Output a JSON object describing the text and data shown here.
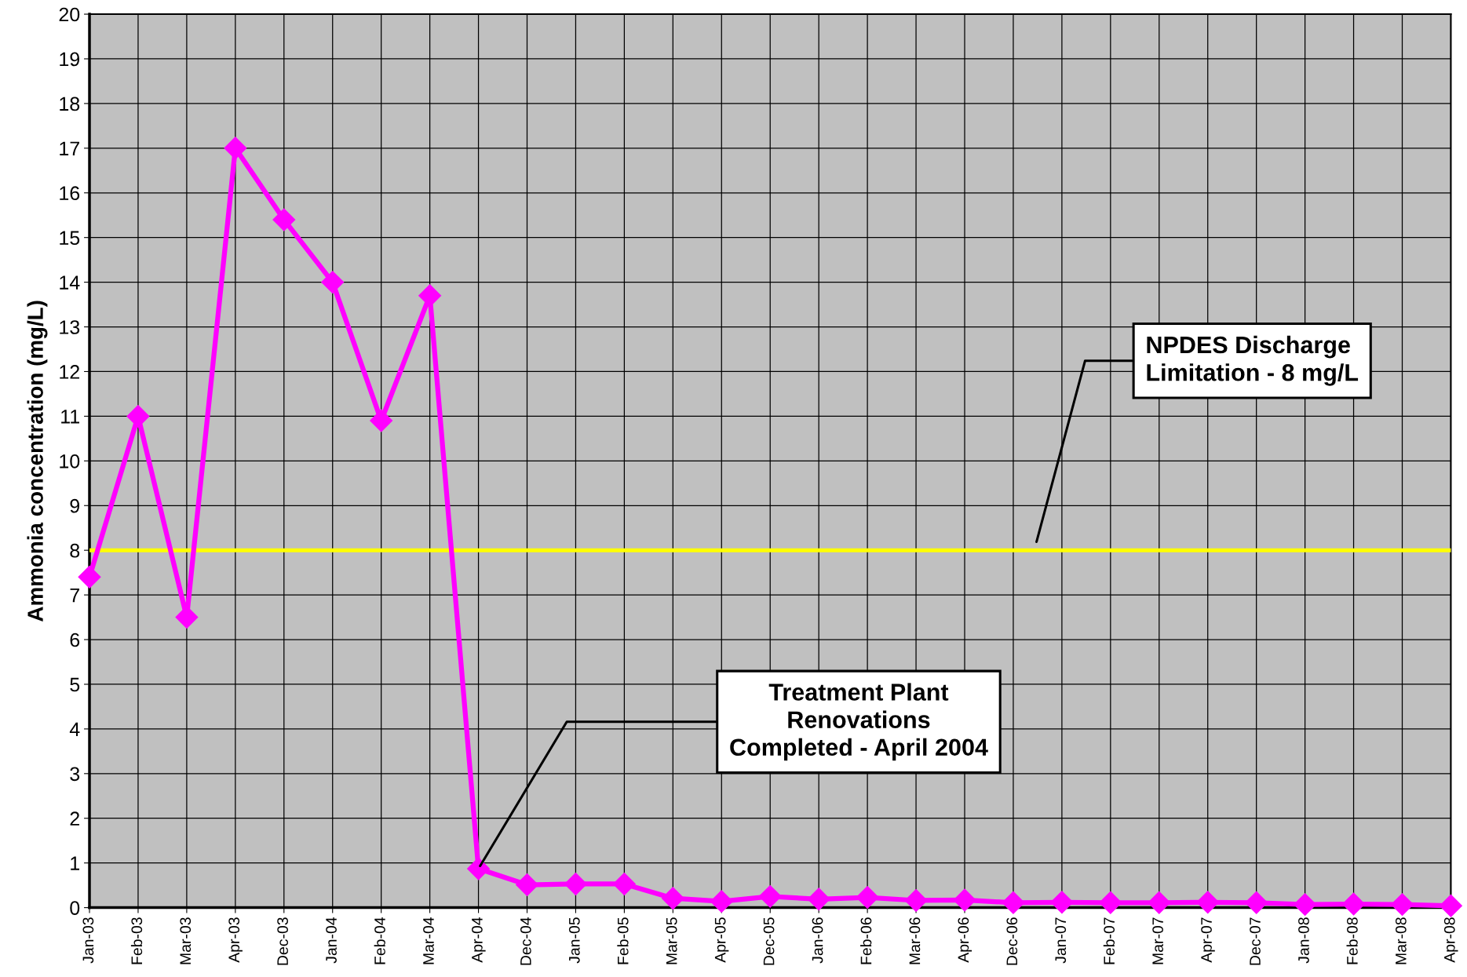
{
  "chart_data": {
    "type": "line",
    "ylabel": "Ammonia concentration (mg/L)",
    "categories": [
      "Jan-03",
      "Feb-03",
      "Mar-03",
      "Apr-03",
      "Dec-03",
      "Jan-04",
      "Feb-04",
      "Mar-04",
      "Apr-04",
      "Dec-04",
      "Jan-05",
      "Feb-05",
      "Mar-05",
      "Apr-05",
      "Dec-05",
      "Jan-06",
      "Feb-06",
      "Mar-06",
      "Apr-06",
      "Dec-06",
      "Jan-07",
      "Feb-07",
      "Mar-07",
      "Apr-07",
      "Dec-07",
      "Jan-08",
      "Feb-08",
      "Mar-08",
      "Apr-08"
    ],
    "series": [
      {
        "color": "#ff00ff",
        "values": [
          7.4,
          11,
          6.5,
          17,
          15.4,
          14,
          10.9,
          13.7,
          0.87,
          0.51,
          0.53,
          0.53,
          0.21,
          0.14,
          0.25,
          0.19,
          0.23,
          0.16,
          0.17,
          0.11,
          0.12,
          0.11,
          0.11,
          0.12,
          0.11,
          0.07,
          0.08,
          0.07,
          0.04
        ]
      }
    ],
    "ylim": [
      0,
      20
    ],
    "yticks": [
      0,
      1,
      2,
      3,
      4,
      5,
      6,
      7,
      8,
      9,
      10,
      11,
      12,
      13,
      14,
      15,
      16,
      17,
      18,
      19,
      20
    ],
    "grid": true,
    "marker": "diamond",
    "line_style": "solid",
    "ref_lines": [
      {
        "axis": "y",
        "value": 8,
        "label": "NPDES Discharge\nLimitation - 8 mg/L",
        "color": "#ffff00"
      }
    ],
    "annotations": [
      {
        "text": "Treatment Plant\nRenovations\nCompleted - April 2004",
        "x": "Apr-04",
        "y": 0.87
      }
    ]
  }
}
